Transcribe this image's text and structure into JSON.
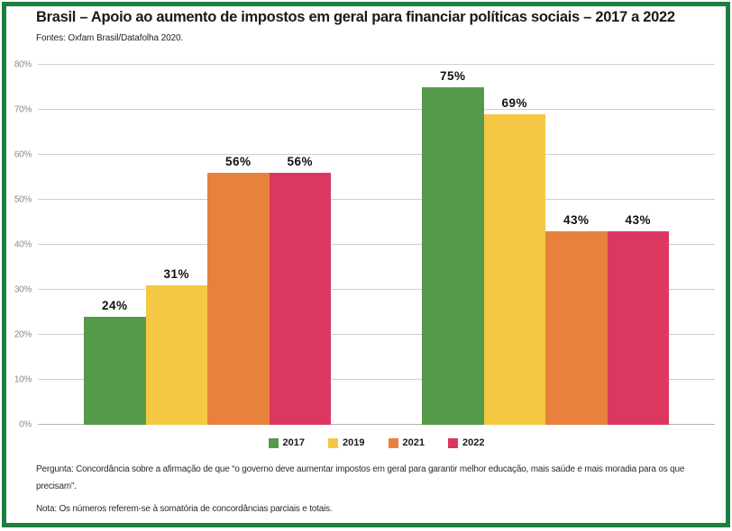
{
  "header": {
    "title": "Brasil – Apoio ao aumento de impostos em geral para financiar políticas sociais – 2017 a 2022",
    "source": "Fontes: Oxfam Brasil/Datafolha 2020."
  },
  "footer": {
    "question": "Pergunta: Concordância sobre a afirmação de que “o governo deve aumentar impostos em geral para garantir melhor educação, mais saúde e mais moradia para os que precisam”.",
    "note": "Nota: Os números referem-se à somatória de concordâncias parciais e totais."
  },
  "colors": {
    "frame": "#1E7D41",
    "grid": "#CFCFCF",
    "tick_label": "#8A8A8A",
    "value_label": "#111111"
  },
  "chart_data": {
    "type": "bar",
    "title": "Brasil – Apoio ao aumento de impostos em geral para financiar políticas sociais – 2017 a 2022",
    "subtitle": "Fontes: Oxfam Brasil/Datafolha 2020.",
    "categories": [
      "",
      ""
    ],
    "series": [
      {
        "name": "2017",
        "color": "#559A4A",
        "values": [
          24,
          75
        ]
      },
      {
        "name": "2019",
        "color": "#F5C844",
        "values": [
          31,
          69
        ]
      },
      {
        "name": "2021",
        "color": "#E7813C",
        "values": [
          56,
          43
        ]
      },
      {
        "name": "2022",
        "color": "#DC3761",
        "values": [
          56,
          43
        ]
      }
    ],
    "xlabel": "",
    "ylabel": "",
    "ylim": [
      0,
      80
    ],
    "yticks": [
      0,
      10,
      20,
      30,
      40,
      50,
      60,
      70,
      80
    ],
    "ytick_suffix": "%",
    "value_label_suffix": "%",
    "grid": true,
    "legend_position": "bottom"
  }
}
